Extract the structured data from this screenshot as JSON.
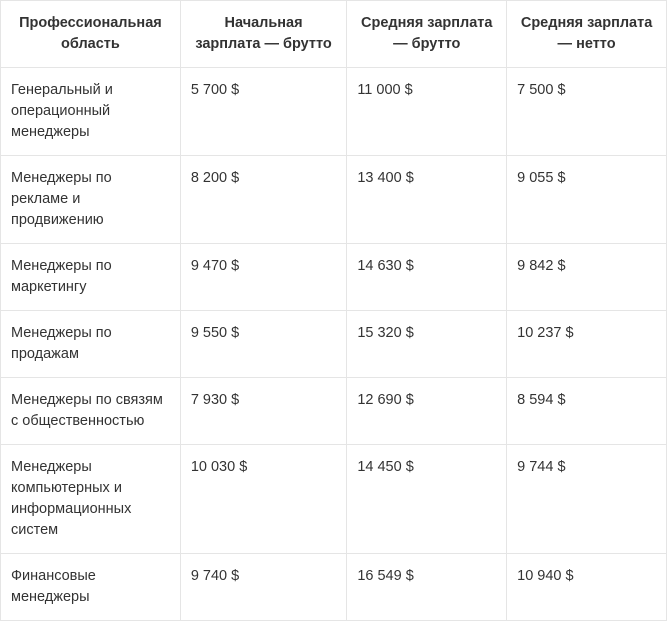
{
  "table": {
    "type": "table",
    "background_color": "#ffffff",
    "border_color": "#e5e5e5",
    "text_color": "#333333",
    "header_fontsize": 14.5,
    "body_fontsize": 14.5,
    "header_font_weight": 700,
    "body_font_weight": 400,
    "column_widths_pct": [
      27,
      25,
      24,
      24
    ],
    "header_align": "center",
    "body_align": "left",
    "columns": [
      "Профессиональная область",
      "Начальная зарплата — брутто",
      "Средняя зарплата — брутто",
      "Средняя зарплата — нетто"
    ],
    "rows": [
      [
        "Генеральный и операционный менеджеры",
        "5 700 $",
        "11 000 $",
        "7 500 $"
      ],
      [
        "Менеджеры по рекламе и продвижению",
        "8 200 $",
        "13 400 $",
        "9 055 $"
      ],
      [
        "Менеджеры по маркетингу",
        "9 470 $",
        "14 630 $",
        "9 842 $"
      ],
      [
        "Менеджеры по продажам",
        "9 550 $",
        "15 320 $",
        "10 237 $"
      ],
      [
        "Менеджеры по связям с общественностью",
        "7 930 $",
        "12 690 $",
        "8 594 $"
      ],
      [
        "Менеджеры компьютерных и информационных систем",
        "10 030 $",
        "14 450 $",
        "9 744 $"
      ],
      [
        "Финансовые менеджеры",
        "9 740 $",
        "16 549 $",
        "10 940 $"
      ]
    ]
  }
}
